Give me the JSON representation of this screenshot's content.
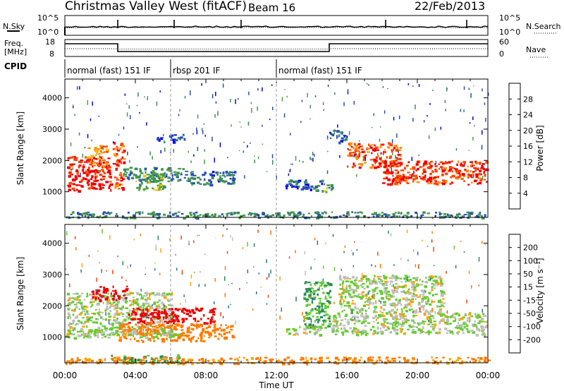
{
  "header": {
    "station": "Christmas Valley West (fitACF)",
    "beam": "Beam 16",
    "date": "22/Feb/2013"
  },
  "sky_panel": {
    "left_label": "N.Sky",
    "left_ticks": [
      "10^5",
      "10^0"
    ],
    "right_label": "N.Search",
    "right_ticks": [
      "10^5",
      "10^0"
    ]
  },
  "freq_panel": {
    "left_label_1": "Freq.",
    "left_label_2": "[MHz]",
    "left_ticks": [
      "18",
      "8"
    ],
    "right_label": "Nave",
    "right_ticks": [
      "60",
      "0"
    ]
  },
  "cpid": {
    "label": "CPID",
    "modes": [
      {
        "name": "normal (fast) 151 IF",
        "start": 0,
        "end": 6
      },
      {
        "name": "rbsp 201 IF",
        "start": 6,
        "end": 12
      },
      {
        "name": "normal (fast) 151 IF",
        "start": 12,
        "end": 24
      }
    ]
  },
  "x_axis": {
    "label": "Time UT",
    "ticks": [
      "00:00",
      "04:00",
      "08:00",
      "12:00",
      "16:00",
      "20:00",
      "00:00"
    ]
  },
  "y_axis": {
    "label": "Slant Range [km]",
    "ticks": [
      "1000",
      "2000",
      "3000",
      "4000"
    ]
  },
  "power_scale": {
    "label": "Power [dB]",
    "ticks": [
      "4",
      "8",
      "12",
      "16",
      "20",
      "24",
      "28"
    ],
    "colors": [
      "#0000ee",
      "#2a4fb5",
      "#3f8a60",
      "#44a044",
      "#f0c000",
      "#ff9000",
      "#ff4500",
      "#ee0000"
    ]
  },
  "velocity_scale": {
    "label": "Velocity [m s⁻¹]",
    "ticks": [
      "200",
      "100",
      "50",
      "15",
      "-15",
      "-50",
      "-100",
      "-200"
    ],
    "colors": [
      "#1133cc",
      "#2f6d9c",
      "#2a8c5a",
      "#66cc33",
      "#bebebe",
      "#ffa500",
      "#ff7a00",
      "#ff4000",
      "#ee0000"
    ]
  },
  "chart_data": [
    {
      "type": "heatmap",
      "title": "Power",
      "xlabel": "Time UT",
      "ylabel": "Slant Range [km]",
      "xlim": [
        0,
        24
      ],
      "ylim": [
        180,
        4600
      ],
      "colorbar": {
        "label": "Power [dB]",
        "range": [
          0,
          32
        ]
      },
      "cells": [
        {
          "x": [
            0.1,
            2.6
          ],
          "y": [
            1050,
            2150
          ],
          "value": 30
        },
        {
          "x": [
            1.2,
            2.4
          ],
          "y": [
            1800,
            2500
          ],
          "value": 22
        },
        {
          "x": [
            2.7,
            3.3
          ],
          "y": [
            1100,
            2600
          ],
          "value": 26
        },
        {
          "x": [
            3.3,
            6.8
          ],
          "y": [
            1350,
            1800
          ],
          "value": 11
        },
        {
          "x": [
            6.8,
            9.6
          ],
          "y": [
            1250,
            1700
          ],
          "value": 8
        },
        {
          "x": [
            4.0,
            5.6
          ],
          "y": [
            1050,
            1600
          ],
          "value": 14
        },
        {
          "x": [
            5.2,
            6.8
          ],
          "y": [
            2600,
            2850
          ],
          "value": 6
        },
        {
          "x": [
            12.5,
            14.7
          ],
          "y": [
            1100,
            1400
          ],
          "value": 6
        },
        {
          "x": [
            14.0,
            15.2
          ],
          "y": [
            1000,
            1300
          ],
          "value": 12
        },
        {
          "x": [
            15.0,
            16.0
          ],
          "y": [
            2600,
            3000
          ],
          "value": 6
        },
        {
          "x": [
            16.0,
            19.0
          ],
          "y": [
            1800,
            2600
          ],
          "value": 26
        },
        {
          "x": [
            18.0,
            23.9
          ],
          "y": [
            1250,
            2000
          ],
          "value": 28
        },
        {
          "x": [
            0.0,
            24.0
          ],
          "y": [
            180,
            380
          ],
          "value": 10
        }
      ]
    },
    {
      "type": "heatmap",
      "title": "Velocity",
      "xlabel": "Time UT",
      "ylabel": "Slant Range [km]",
      "xlim": [
        0,
        24
      ],
      "ylim": [
        180,
        4600
      ],
      "colorbar": {
        "label": "Velocity [m s⁻¹]",
        "range": [
          -200,
          200
        ]
      },
      "cells": [
        {
          "x": [
            0.1,
            6.0
          ],
          "y": [
            1100,
            2450
          ],
          "value": 0
        },
        {
          "x": [
            1.5,
            3.5
          ],
          "y": [
            2200,
            2650
          ],
          "value": -210
        },
        {
          "x": [
            3.5,
            8.5
          ],
          "y": [
            1450,
            1950
          ],
          "value": -190
        },
        {
          "x": [
            3.0,
            9.5
          ],
          "y": [
            900,
            1450
          ],
          "value": -75
        },
        {
          "x": [
            0.0,
            6.5
          ],
          "y": [
            1000,
            1250
          ],
          "value": 0
        },
        {
          "x": [
            12.5,
            14.5
          ],
          "y": [
            1100,
            1400
          ],
          "value": 0
        },
        {
          "x": [
            13.5,
            15.0
          ],
          "y": [
            1300,
            2800
          ],
          "value": 30
        },
        {
          "x": [
            15.0,
            24.0
          ],
          "y": [
            1100,
            1800
          ],
          "value": 0
        },
        {
          "x": [
            15.5,
            21.5
          ],
          "y": [
            1800,
            3000
          ],
          "value": 0
        },
        {
          "x": [
            2.5,
            6.5
          ],
          "y": [
            180,
            450
          ],
          "value": 30
        },
        {
          "x": [
            0.0,
            24.0
          ],
          "y": [
            180,
            380
          ],
          "value": -60
        }
      ]
    }
  ]
}
